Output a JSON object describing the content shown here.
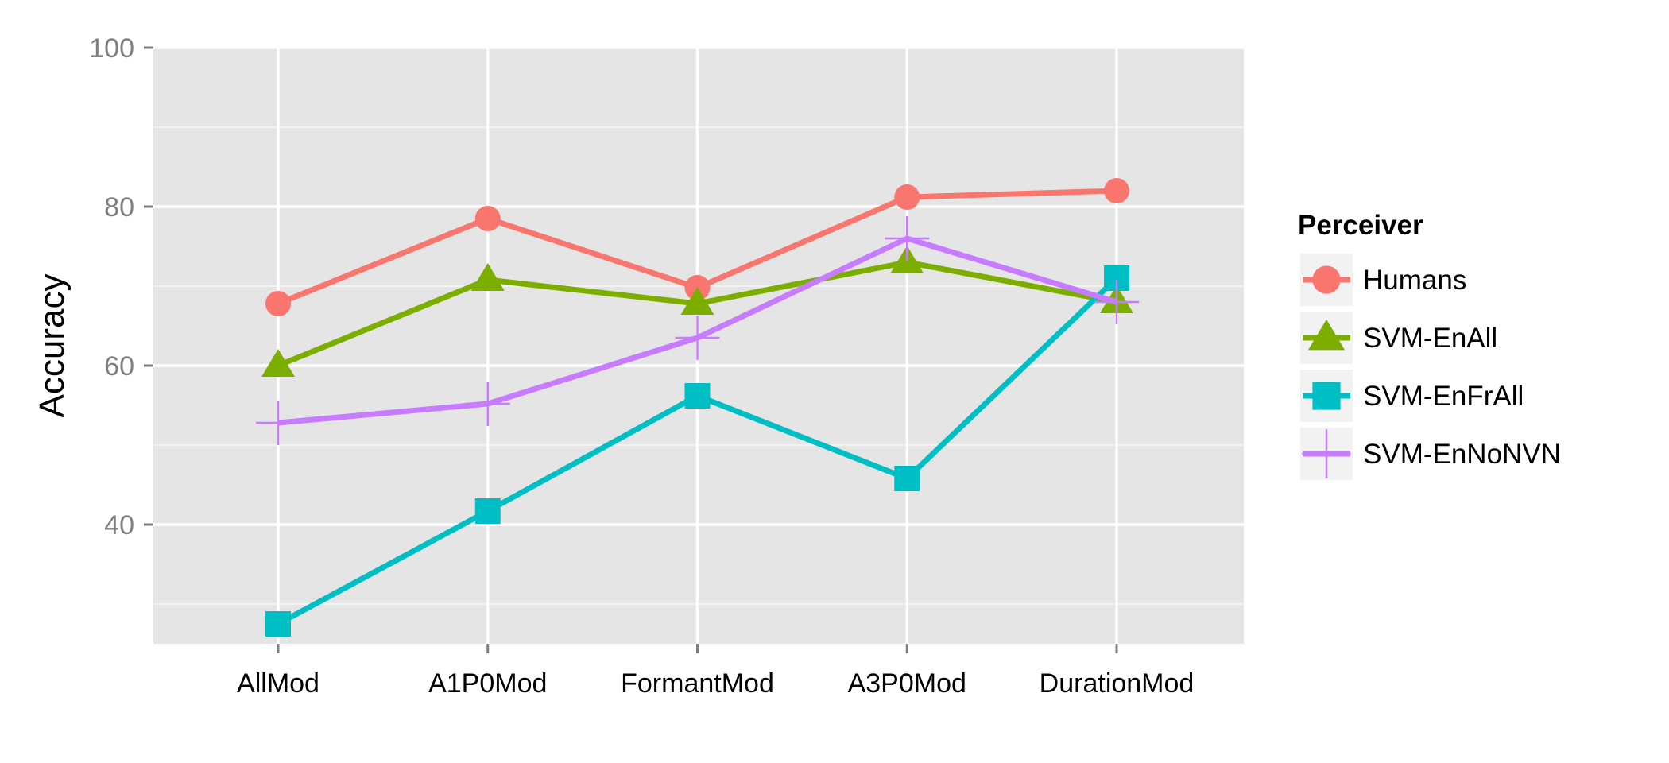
{
  "chart_data": {
    "type": "line",
    "title": "",
    "xlabel": "",
    "ylabel": "Accuracy",
    "categories": [
      "AllMod",
      "A1P0Mod",
      "FormantMod",
      "A3P0Mod",
      "DurationMod"
    ],
    "ylim": [
      25,
      100
    ],
    "yticks": [
      40,
      60,
      80,
      100
    ],
    "grid": true,
    "legend": {
      "title": "Perceiver",
      "position": "right"
    },
    "series": [
      {
        "name": "Humans",
        "color": "#F8766D",
        "marker": "circle",
        "values": [
          67.8,
          78.5,
          69.8,
          81.2,
          82.0
        ]
      },
      {
        "name": "SVM-EnAll",
        "color": "#7CAE00",
        "marker": "triangle",
        "values": [
          60.0,
          70.8,
          67.8,
          73.0,
          68.0
        ]
      },
      {
        "name": "SVM-EnFrAll",
        "color": "#00BFC4",
        "marker": "square",
        "values": [
          27.5,
          41.7,
          56.2,
          45.8,
          71.0
        ]
      },
      {
        "name": "SVM-EnNoNVN",
        "color": "#C77CFF",
        "marker": "plus",
        "values": [
          52.8,
          55.2,
          63.5,
          76.0,
          68.0
        ]
      }
    ]
  }
}
